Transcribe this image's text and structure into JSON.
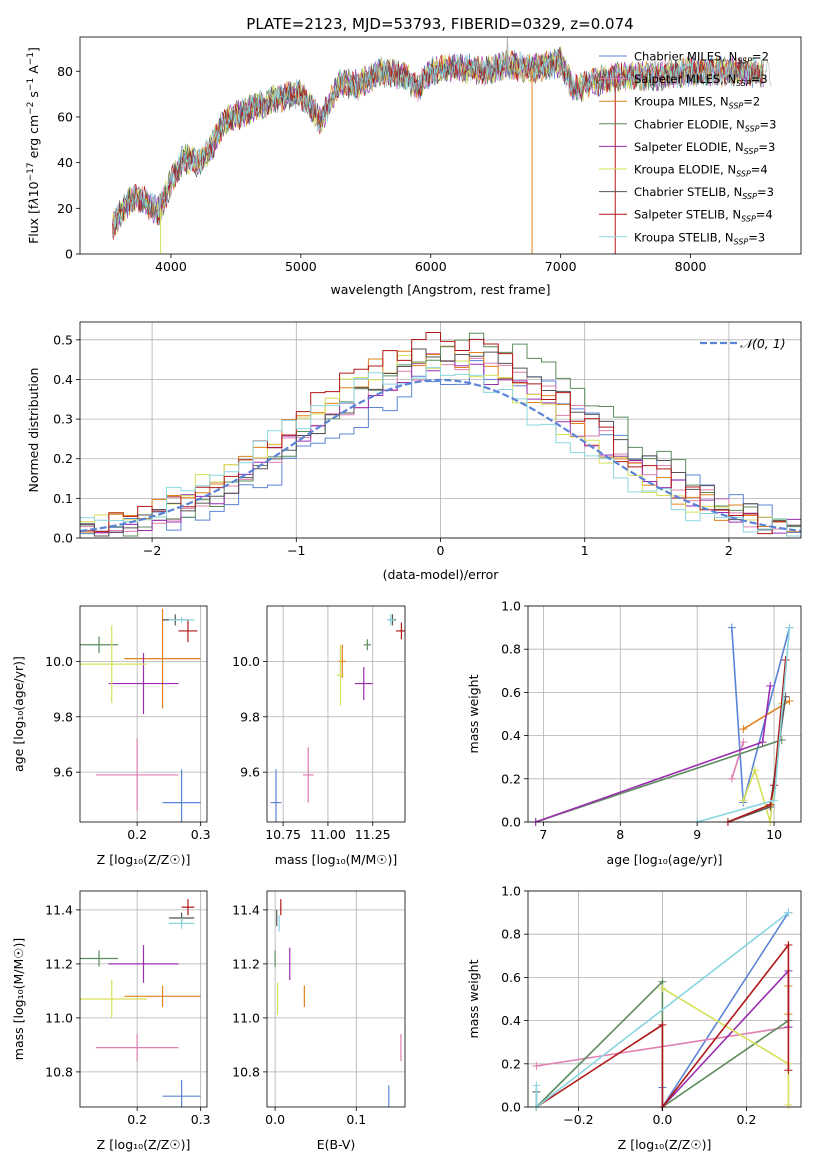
{
  "figure_title": "PLATE=2123, MJD=53793, FIBERID=0329, z=0.074",
  "colors": {
    "Chabrier MILES": "#5b84d6",
    "Salpeter MILES": "#e07fb0",
    "Kroupa MILES": "#e0801e",
    "Chabrier ELODIE": "#5c8c5c",
    "Salpeter ELODIE": "#9a2db0",
    "Kroupa ELODIE": "#d6e05a",
    "Chabrier STELIB": "#555555",
    "Salpeter STELIB": "#b01818",
    "Kroupa STELIB": "#8ad6e0",
    "data": "#b0b0b0",
    "gaussian": "#5b84d6"
  },
  "chart_data": [
    {
      "id": "spectrum",
      "type": "line",
      "xlabel": "wavelength [Angstrom, rest frame]",
      "ylabel": "Flux [f_λ10^{-17} erg cm^{-2} s^{-1} A^{-1}]",
      "ylabel_parts": [
        "Flux [f",
        "λ",
        "10",
        "−17",
        " erg cm",
        "−2",
        " s",
        "−1",
        " A",
        "−1",
        "]"
      ],
      "xlim": [
        3300,
        8850
      ],
      "ylim": [
        0,
        95
      ],
      "xticks": [
        4000,
        5000,
        6000,
        7000,
        8000
      ],
      "yticks": [
        0,
        20,
        40,
        60,
        80
      ],
      "continuum_x": [
        3550,
        3700,
        3800,
        3900,
        3950,
        4000,
        4100,
        4200,
        4300,
        4400,
        4600,
        4800,
        5000,
        5150,
        5300,
        5450,
        5600,
        5800,
        5900,
        6000,
        6200,
        6400,
        6600,
        6800,
        7000,
        7100,
        7300,
        7500,
        7800,
        8000,
        8200,
        8400,
        8600
      ],
      "continuum_y": [
        12,
        25,
        23,
        18,
        24,
        32,
        42,
        40,
        45,
        58,
        63,
        68,
        70,
        58,
        75,
        74,
        80,
        78,
        73,
        80,
        82,
        80,
        83,
        81,
        84,
        72,
        76,
        78,
        78,
        80,
        80,
        80,
        79
      ],
      "legend": [
        {
          "label": "Chabrier MILES, N",
          "sub": "SSP",
          "eq": "=2"
        },
        {
          "label": "Salpeter MILES, N",
          "sub": "SSP",
          "eq": "=3"
        },
        {
          "label": "Kroupa MILES, N",
          "sub": "SSP",
          "eq": "=2"
        },
        {
          "label": "Chabrier ELODIE, N",
          "sub": "SSP",
          "eq": "=3"
        },
        {
          "label": "Salpeter ELODIE, N",
          "sub": "SSP",
          "eq": "=3"
        },
        {
          "label": "Kroupa ELODIE, N",
          "sub": "SSP",
          "eq": "=4"
        },
        {
          "label": "Chabrier STELIB, N",
          "sub": "SSP",
          "eq": "=3"
        },
        {
          "label": "Salpeter STELIB, N",
          "sub": "SSP",
          "eq": "=4"
        },
        {
          "label": "Kroupa STELIB, N",
          "sub": "SSP",
          "eq": "=3"
        }
      ]
    },
    {
      "id": "residuals",
      "type": "line",
      "xlabel": "(data-model)/error",
      "ylabel": "Normed distribution",
      "xlim": [
        -2.5,
        2.5
      ],
      "ylim": [
        0,
        0.545
      ],
      "xticks": [
        -2,
        -1,
        0,
        1,
        2
      ],
      "yticks": [
        0.0,
        0.1,
        0.2,
        0.3,
        0.4,
        0.5
      ],
      "grid": true,
      "legend": {
        "label": "𝒩(0, 1)",
        "position": "top-right"
      },
      "gaussian": {
        "mean": 0,
        "sigma": 1
      }
    },
    {
      "id": "age-Z",
      "type": "scatter",
      "xlabel": "Z [log₁₀(Z/Z☉)]",
      "ylabel": "age  [log₁₀(age/yr)]",
      "xlim": [
        0.11,
        0.31
      ],
      "ylim": [
        9.42,
        10.2
      ],
      "xticks": [
        0.2,
        0.3
      ],
      "yticks": [
        9.6,
        9.8,
        10.0
      ],
      "grid": true,
      "points": [
        {
          "model": "Chabrier MILES",
          "x": 0.27,
          "y": 9.49,
          "xerr": 0.03,
          "yerr": 0.12
        },
        {
          "model": "Salpeter MILES",
          "x": 0.2,
          "y": 9.59,
          "xerr": 0.065,
          "yerr": 0.13
        },
        {
          "model": "Kroupa MILES",
          "x": 0.24,
          "y": 10.01,
          "xerr": 0.06,
          "yerr": 0.18
        },
        {
          "model": "Chabrier ELODIE",
          "x": 0.14,
          "y": 10.06,
          "xerr": 0.03,
          "yerr": 0.03
        },
        {
          "model": "Salpeter ELODIE",
          "x": 0.21,
          "y": 9.92,
          "xerr": 0.055,
          "yerr": 0.11
        },
        {
          "model": "Kroupa ELODIE",
          "x": 0.16,
          "y": 9.99,
          "xerr": 0.055,
          "yerr": 0.14
        },
        {
          "model": "Chabrier STELIB",
          "x": 0.26,
          "y": 10.15,
          "xerr": 0.02,
          "yerr": 0.02
        },
        {
          "model": "Salpeter STELIB",
          "x": 0.28,
          "y": 10.11,
          "xerr": 0.015,
          "yerr": 0.04
        },
        {
          "model": "Kroupa STELIB",
          "x": 0.27,
          "y": 10.15,
          "xerr": 0.02,
          "yerr": 0.01
        }
      ]
    },
    {
      "id": "age-mass",
      "type": "scatter",
      "xlabel": "mass [log₁₀(M/M☉)]",
      "ylabel": "",
      "xlim": [
        10.66,
        11.43
      ],
      "ylim": [
        9.42,
        10.2
      ],
      "xticks": [
        10.75,
        11.0,
        11.25
      ],
      "yticks": [
        9.6,
        9.8,
        10.0
      ],
      "xtick_labels": [
        "10.75",
        "11.00",
        "11.25"
      ],
      "grid": true,
      "points": [
        {
          "model": "Chabrier MILES",
          "x": 10.71,
          "y": 9.49,
          "xerr": 0.03,
          "yerr": 0.12
        },
        {
          "model": "Salpeter MILES",
          "x": 10.89,
          "y": 9.59,
          "xerr": 0.03,
          "yerr": 0.1
        },
        {
          "model": "Kroupa MILES",
          "x": 11.08,
          "y": 10.0,
          "xerr": 0.02,
          "yerr": 0.06
        },
        {
          "model": "Chabrier ELODIE",
          "x": 11.22,
          "y": 10.06,
          "xerr": 0.02,
          "yerr": 0.02
        },
        {
          "model": "Salpeter ELODIE",
          "x": 11.2,
          "y": 9.92,
          "xerr": 0.05,
          "yerr": 0.06
        },
        {
          "model": "Kroupa ELODIE",
          "x": 11.07,
          "y": 9.95,
          "xerr": 0.02,
          "yerr": 0.11
        },
        {
          "model": "Chabrier STELIB",
          "x": 11.36,
          "y": 10.15,
          "xerr": 0.02,
          "yerr": 0.02
        },
        {
          "model": "Salpeter STELIB",
          "x": 11.41,
          "y": 10.11,
          "xerr": 0.03,
          "yerr": 0.03
        },
        {
          "model": "Kroupa STELIB",
          "x": 11.35,
          "y": 10.15,
          "xerr": 0.02,
          "yerr": 0.02
        }
      ]
    },
    {
      "id": "weight-age",
      "type": "line",
      "xlabel": "age  [log₁₀(age/yr)]",
      "ylabel": "mass weight",
      "xlim": [
        6.8,
        10.35
      ],
      "ylim": [
        0,
        1.0
      ],
      "xticks": [
        7,
        8,
        9,
        10
      ],
      "yticks": [
        0.0,
        0.2,
        0.4,
        0.6,
        0.8,
        1.0
      ],
      "grid": true,
      "series": [
        {
          "model": "Chabrier MILES",
          "x": [
            9.45,
            9.6,
            10.2
          ],
          "y": [
            0.9,
            0.09,
            0.9
          ]
        },
        {
          "model": "Salpeter MILES",
          "x": [
            9.45,
            9.6
          ],
          "y": [
            0.2,
            0.37
          ]
        },
        {
          "model": "Kroupa MILES",
          "x": [
            9.6,
            10.2
          ],
          "y": [
            0.43,
            0.56
          ]
        },
        {
          "model": "Chabrier ELODIE",
          "x": [
            6.9,
            10.1
          ],
          "y": [
            0.0,
            0.38
          ]
        },
        {
          "model": "Salpeter ELODIE",
          "x": [
            6.9,
            9.85,
            9.95
          ],
          "y": [
            0.0,
            0.37,
            0.63
          ]
        },
        {
          "model": "Kroupa ELODIE",
          "x": [
            9.6,
            9.75,
            9.95,
            10.1
          ],
          "y": [
            0.1,
            0.24,
            0.0,
            0.55
          ]
        },
        {
          "model": "Chabrier STELIB",
          "x": [
            9.4,
            9.95,
            10.15
          ],
          "y": [
            0.0,
            0.07,
            0.58
          ]
        },
        {
          "model": "Salpeter STELIB",
          "x": [
            9.4,
            9.95,
            10.0,
            10.15
          ],
          "y": [
            0.0,
            0.08,
            0.17,
            0.75
          ]
        },
        {
          "model": "Kroupa STELIB",
          "x": [
            9.0,
            10.0,
            10.2
          ],
          "y": [
            0.0,
            0.1,
            0.9
          ]
        }
      ]
    },
    {
      "id": "mass-Z",
      "type": "scatter",
      "xlabel": "Z [log₁₀(Z/Z☉)]",
      "ylabel": "mass [log₁₀(M/M☉)]",
      "xlim": [
        0.11,
        0.31
      ],
      "ylim": [
        10.67,
        11.47
      ],
      "xticks": [
        0.2,
        0.3
      ],
      "yticks": [
        10.8,
        11.0,
        11.2,
        11.4
      ],
      "grid": true,
      "points": [
        {
          "model": "Chabrier MILES",
          "x": 0.27,
          "y": 10.71,
          "xerr": 0.03,
          "yerr": 0.06
        },
        {
          "model": "Salpeter MILES",
          "x": 0.2,
          "y": 10.89,
          "xerr": 0.065,
          "yerr": 0.05
        },
        {
          "model": "Kroupa MILES",
          "x": 0.24,
          "y": 11.08,
          "xerr": 0.06,
          "yerr": 0.04
        },
        {
          "model": "Chabrier ELODIE",
          "x": 0.14,
          "y": 11.22,
          "xerr": 0.03,
          "yerr": 0.03
        },
        {
          "model": "Salpeter ELODIE",
          "x": 0.21,
          "y": 11.2,
          "xerr": 0.055,
          "yerr": 0.07
        },
        {
          "model": "Kroupa ELODIE",
          "x": 0.16,
          "y": 11.07,
          "xerr": 0.055,
          "yerr": 0.07
        },
        {
          "model": "Chabrier STELIB",
          "x": 0.27,
          "y": 11.37,
          "xerr": 0.02,
          "yerr": 0.02
        },
        {
          "model": "Salpeter STELIB",
          "x": 0.28,
          "y": 11.41,
          "xerr": 0.01,
          "yerr": 0.03
        },
        {
          "model": "Kroupa STELIB",
          "x": 0.27,
          "y": 11.35,
          "xerr": 0.02,
          "yerr": 0.02
        }
      ]
    },
    {
      "id": "mass-EBV",
      "type": "scatter",
      "xlabel": "E(B-V)",
      "ylabel": "",
      "xlim": [
        -0.01,
        0.16
      ],
      "ylim": [
        10.67,
        11.47
      ],
      "xticks": [
        0.0,
        0.1
      ],
      "yticks": [
        10.8,
        11.0,
        11.2,
        11.4
      ],
      "grid": true,
      "points": [
        {
          "model": "Chabrier MILES",
          "x": 0.14,
          "y": 10.71,
          "xerr": 0,
          "yerr": 0.04
        },
        {
          "model": "Salpeter MILES",
          "x": 0.155,
          "y": 10.89,
          "xerr": 0,
          "yerr": 0.05
        },
        {
          "model": "Kroupa MILES",
          "x": 0.036,
          "y": 11.08,
          "xerr": 0,
          "yerr": 0.04
        },
        {
          "model": "Chabrier ELODIE",
          "x": 0.0,
          "y": 11.22,
          "xerr": 0,
          "yerr": 0.03
        },
        {
          "model": "Salpeter ELODIE",
          "x": 0.018,
          "y": 11.2,
          "xerr": 0,
          "yerr": 0.06
        },
        {
          "model": "Kroupa ELODIE",
          "x": 0.003,
          "y": 11.07,
          "xerr": 0,
          "yerr": 0.06
        },
        {
          "model": "Chabrier STELIB",
          "x": 0.002,
          "y": 11.37,
          "xerr": 0,
          "yerr": 0.03
        },
        {
          "model": "Salpeter STELIB",
          "x": 0.007,
          "y": 11.41,
          "xerr": 0,
          "yerr": 0.03
        },
        {
          "model": "Kroupa STELIB",
          "x": 0.005,
          "y": 11.35,
          "xerr": 0,
          "yerr": 0.03
        }
      ]
    },
    {
      "id": "weight-Z",
      "type": "line",
      "xlabel": "Z [log₁₀(Z/Z☉)]",
      "ylabel": "mass weight",
      "xlim": [
        -0.32,
        0.33
      ],
      "ylim": [
        0,
        1.0
      ],
      "xticks": [
        -0.2,
        0.0,
        0.2
      ],
      "yticks": [
        0.0,
        0.2,
        0.4,
        0.6,
        0.8,
        1.0
      ],
      "xtick_labels": [
        "−0.2",
        "0.0",
        "0.2"
      ],
      "grid": true,
      "series": [
        {
          "model": "Chabrier MILES",
          "x": [
            0.0,
            0.0,
            0.3
          ],
          "y": [
            0.09,
            0.0,
            0.9
          ]
        },
        {
          "model": "Salpeter MILES",
          "x": [
            -0.3,
            0.3
          ],
          "y": [
            0.19,
            0.37
          ]
        },
        {
          "model": "Kroupa MILES",
          "x": [
            0.3,
            0.3
          ],
          "y": [
            0.43,
            0.56
          ]
        },
        {
          "model": "Chabrier ELODIE",
          "x": [
            -0.3,
            0.0,
            0.0,
            0.3
          ],
          "y": [
            0.0,
            0.58,
            0.0,
            0.4
          ]
        },
        {
          "model": "Salpeter ELODIE",
          "x": [
            0.0,
            0.3,
            0.3
          ],
          "y": [
            0.0,
            0.63,
            0.37
          ]
        },
        {
          "model": "Kroupa ELODIE",
          "x": [
            0.0,
            0.3,
            0.3
          ],
          "y": [
            0.55,
            0.2,
            0.01
          ]
        },
        {
          "model": "Chabrier STELIB",
          "x": [
            -0.3,
            -0.3
          ],
          "y": [
            0.0,
            0.07
          ]
        },
        {
          "model": "Salpeter STELIB",
          "x": [
            -0.3,
            0.0,
            0.0,
            0.3,
            0.3
          ],
          "y": [
            0.0,
            0.38,
            0.0,
            0.75,
            0.17
          ]
        },
        {
          "model": "Kroupa STELIB",
          "x": [
            -0.3,
            -0.3,
            0.3
          ],
          "y": [
            0.1,
            0.0,
            0.9
          ]
        }
      ]
    }
  ]
}
